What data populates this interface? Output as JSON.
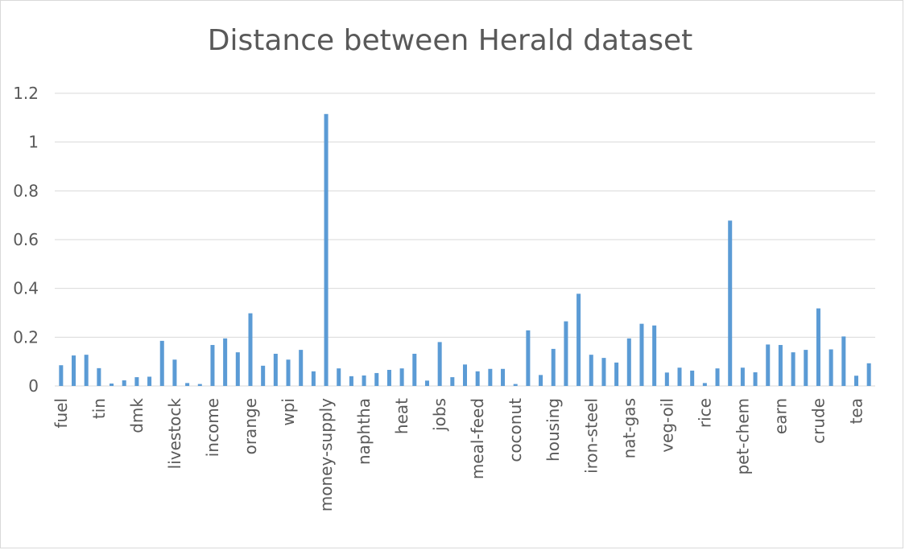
{
  "chart_data": {
    "type": "bar",
    "title": "Distance between Herald dataset",
    "xlabel": "",
    "ylabel": "",
    "ylim": [
      0,
      1.2
    ],
    "yticks": [
      "0",
      "0.2",
      "0.4",
      "0.6",
      "0.8",
      "1",
      "1.2"
    ],
    "grid": true,
    "legend": "none",
    "bar_color": "#5b9bd5",
    "categories": [
      "fuel",
      "",
      "",
      "tin",
      "",
      "",
      "dmk",
      "",
      "",
      "livestock",
      "",
      "",
      "income",
      "",
      "",
      "orange",
      "",
      "",
      "wpi",
      "",
      "",
      "money-supply",
      "",
      "",
      "naphtha",
      "",
      "",
      "heat",
      "",
      "",
      "jobs",
      "",
      "",
      "meal-feed",
      "",
      "",
      "coconut",
      "",
      "",
      "housing",
      "",
      "",
      "iron-steel",
      "",
      "",
      "nat-gas",
      "",
      "",
      "veg-oil",
      "",
      "",
      "rice",
      "",
      "",
      "pet-chem",
      "",
      "",
      "earn",
      "",
      "",
      "crude",
      "",
      "",
      "tea",
      ""
    ],
    "values": [
      0.085,
      0.125,
      0.128,
      0.073,
      0.01,
      0.023,
      0.036,
      0.038,
      0.185,
      0.108,
      0.012,
      0.008,
      0.168,
      0.195,
      0.138,
      0.298,
      0.083,
      0.132,
      0.108,
      0.148,
      0.06,
      1.115,
      0.072,
      0.04,
      0.043,
      0.053,
      0.066,
      0.072,
      0.132,
      0.022,
      0.18,
      0.036,
      0.088,
      0.06,
      0.07,
      0.07,
      0.008,
      0.228,
      0.045,
      0.152,
      0.265,
      0.378,
      0.128,
      0.115,
      0.096,
      0.195,
      0.255,
      0.248,
      0.055,
      0.075,
      0.063,
      0.012,
      0.072,
      0.678,
      0.075,
      0.056,
      0.17,
      0.168,
      0.138,
      0.148,
      0.318,
      0.15,
      0.203,
      0.042,
      0.093
    ]
  }
}
